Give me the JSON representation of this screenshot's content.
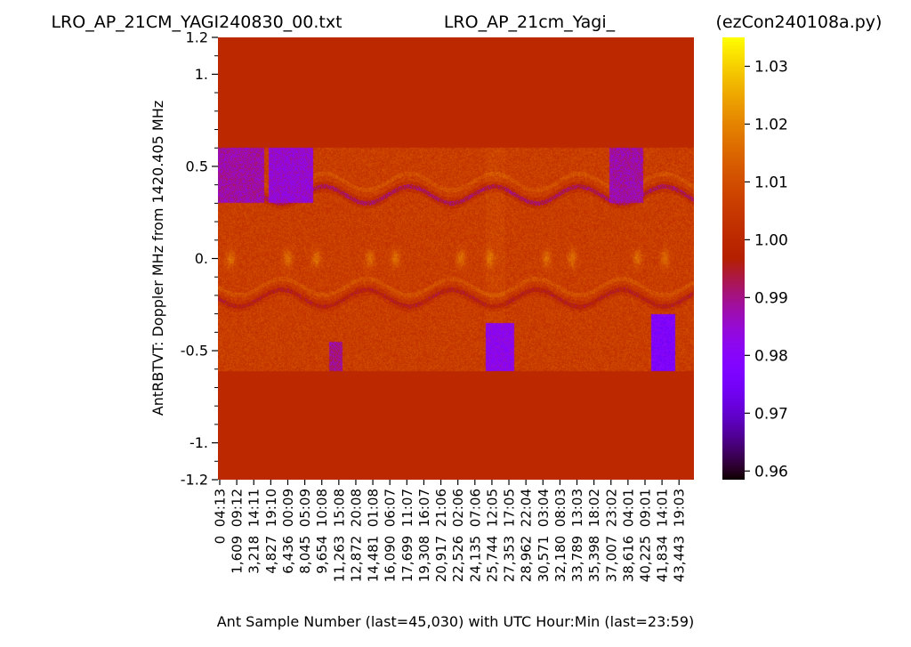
{
  "titles": {
    "left": "LRO_AP_21CM_YAGI240830_00.txt",
    "center": "LRO_AP_21cm_Yagi_",
    "right": "(ezCon240108a.py)"
  },
  "chart_data": {
    "type": "heatmap",
    "xlabel": "Ant Sample Number (last=45,030) with UTC Hour:Min (last=23:59)",
    "ylabel": "AntRBTVT:  Doppler MHz from 1420.405 MHz",
    "ylim": [
      -1.2,
      1.2
    ],
    "y_ticks": [
      {
        "value": 1.2,
        "label": "1.2"
      },
      {
        "value": 1.0,
        "label": "1."
      },
      {
        "value": 0.5,
        "label": "0.5"
      },
      {
        "value": 0.0,
        "label": "0."
      },
      {
        "value": -0.5,
        "label": "-0.5"
      },
      {
        "value": -1.0,
        "label": "-1."
      },
      {
        "value": -1.2,
        "label": "-1.2"
      }
    ],
    "x_range": [
      0,
      45030
    ],
    "x_ticks": [
      {
        "sample": "0",
        "utc": "04:13"
      },
      {
        "sample": "1,609",
        "utc": "09:12"
      },
      {
        "sample": "3,218",
        "utc": "14:11"
      },
      {
        "sample": "4,827",
        "utc": "19:10"
      },
      {
        "sample": "6,436",
        "utc": "00:09"
      },
      {
        "sample": "8,045",
        "utc": "05:09"
      },
      {
        "sample": "9,654",
        "utc": "10:08"
      },
      {
        "sample": "11,263",
        "utc": "15:08"
      },
      {
        "sample": "12,872",
        "utc": "20:08"
      },
      {
        "sample": "14,481",
        "utc": "01:08"
      },
      {
        "sample": "16,090",
        "utc": "06:07"
      },
      {
        "sample": "17,699",
        "utc": "11:07"
      },
      {
        "sample": "19,308",
        "utc": "16:07"
      },
      {
        "sample": "20,917",
        "utc": "21:06"
      },
      {
        "sample": "22,526",
        "utc": "02:06"
      },
      {
        "sample": "24,135",
        "utc": "07:06"
      },
      {
        "sample": "25,744",
        "utc": "12:05"
      },
      {
        "sample": "27,353",
        "utc": "17:05"
      },
      {
        "sample": "28,962",
        "utc": "22:04"
      },
      {
        "sample": "30,571",
        "utc": "03:04"
      },
      {
        "sample": "32,180",
        "utc": "08:03"
      },
      {
        "sample": "33,789",
        "utc": "13:03"
      },
      {
        "sample": "35,398",
        "utc": "18:02"
      },
      {
        "sample": "37,007",
        "utc": "23:02"
      },
      {
        "sample": "38,616",
        "utc": "04:01"
      },
      {
        "sample": "40,225",
        "utc": "09:01"
      },
      {
        "sample": "41,834",
        "utc": "14:01"
      },
      {
        "sample": "43,443",
        "utc": "19:03"
      }
    ],
    "data_band": [
      -0.61,
      0.6
    ],
    "outside_band_value": 1.0,
    "colorbar": {
      "colormap": "gnuplot",
      "range": [
        0.9585,
        1.035
      ],
      "ticks": [
        {
          "value": 1.03,
          "label": "1.03"
        },
        {
          "value": 1.02,
          "label": "1.02"
        },
        {
          "value": 1.01,
          "label": "1.01"
        },
        {
          "value": 1.0,
          "label": "1.00"
        },
        {
          "value": 0.99,
          "label": "0.99"
        },
        {
          "value": 0.98,
          "label": "0.98"
        },
        {
          "value": 0.97,
          "label": "0.97"
        },
        {
          "value": 0.96,
          "label": "0.96"
        }
      ]
    },
    "features": {
      "sinusoid_period_samples": 8045,
      "upper_dark_line_center": 0.345,
      "lower_dark_line_center": -0.215,
      "sinusoid_amplitude": 0.045,
      "bright_blob_center": 0.0,
      "bright_blob_sample_centers": [
        1200,
        6600,
        9300,
        14400,
        16800,
        23000,
        25700,
        31100,
        33500,
        39700,
        42300
      ],
      "purple_regions": [
        {
          "x0": 0,
          "x1": 4400,
          "y0": 0.3,
          "y1": 0.6,
          "value": 0.988
        },
        {
          "x0": 4800,
          "x1": 9000,
          "y0": 0.3,
          "y1": 0.6,
          "value": 0.985
        },
        {
          "x0": 25300,
          "x1": 28000,
          "y0": -0.61,
          "y1": -0.35,
          "value": 0.982
        },
        {
          "x0": 37000,
          "x1": 40200,
          "y0": 0.3,
          "y1": 0.6,
          "value": 0.988
        },
        {
          "x0": 41000,
          "x1": 43300,
          "y0": -0.61,
          "y1": -0.3,
          "value": 0.978
        },
        {
          "x0": 10500,
          "x1": 11800,
          "y0": -0.61,
          "y1": -0.45,
          "value": 0.99
        }
      ],
      "bright_columns": [
        {
          "x0": 10500,
          "x1": 11800,
          "value": 1.006
        },
        {
          "x0": 25300,
          "x1": 27200,
          "value": 1.008
        },
        {
          "x0": 41000,
          "x1": 43000,
          "value": 1.006
        }
      ]
    }
  }
}
